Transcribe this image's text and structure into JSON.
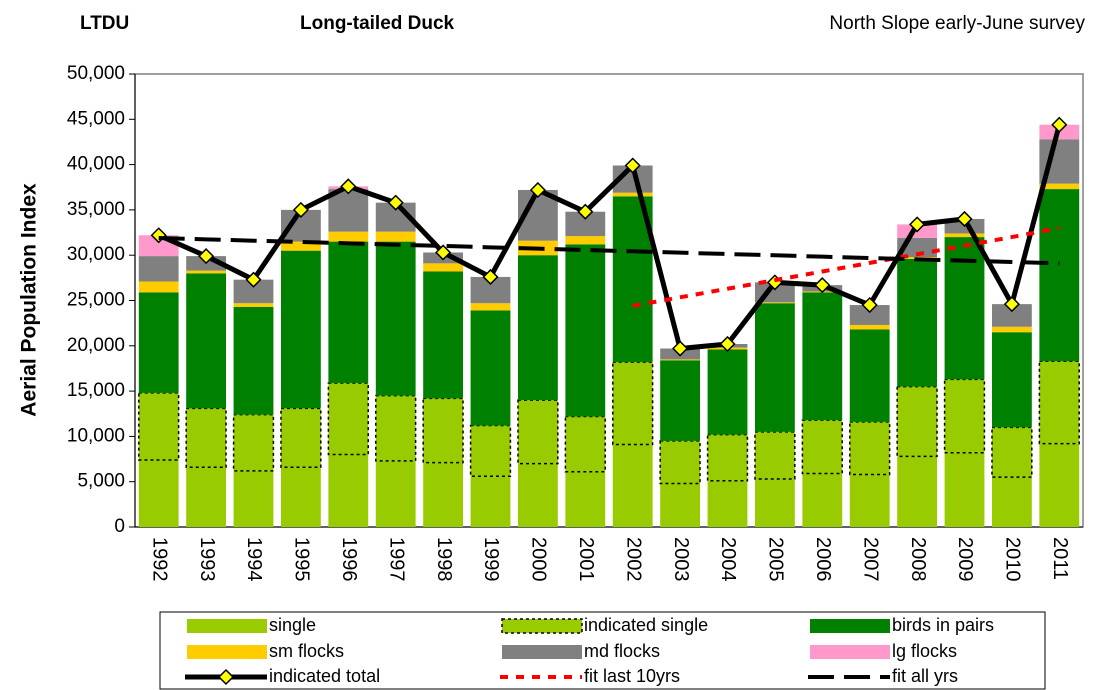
{
  "chart_data": {
    "type": "bar",
    "stacked": true,
    "title": "Long-tailed Duck",
    "code": "LTDU",
    "subtitle": "North Slope early-June survey",
    "y_label": "Aerial Population Index",
    "categories": [
      "1992",
      "1993",
      "1994",
      "1995",
      "1996",
      "1997",
      "1998",
      "1999",
      "2000",
      "2001",
      "2002",
      "2003",
      "2004",
      "2005",
      "2006",
      "2007",
      "2008",
      "2009",
      "2010",
      "2011"
    ],
    "ylim": [
      0,
      50000
    ],
    "yticks": [
      0,
      {
        "value": 5000,
        "label": "5,000"
      },
      {
        "value": 10000,
        "label": "10,000"
      },
      {
        "value": 15000,
        "label": "15,000"
      },
      {
        "value": 20000,
        "label": "20,000"
      },
      {
        "value": 25000,
        "label": "25,000"
      },
      {
        "value": 30000,
        "label": "30,000"
      },
      {
        "value": 35000,
        "label": "35,000"
      },
      {
        "value": 40000,
        "label": "40,000"
      },
      {
        "value": 45000,
        "label": "45,000"
      },
      {
        "value": 50000,
        "label": "50,000"
      }
    ],
    "grid": false,
    "legend": "bottom",
    "series": [
      {
        "name": "single",
        "color": "#99cc00",
        "values": [
          7400,
          6600,
          6200,
          6600,
          8000,
          7300,
          7100,
          5600,
          7000,
          6100,
          9100,
          4800,
          5100,
          5300,
          5900,
          5800,
          7800,
          8200,
          5500,
          9200
        ]
      },
      {
        "name": "indicated single",
        "color": "#99cc00",
        "dotted": true,
        "values": [
          7400,
          6500,
          6200,
          6500,
          7900,
          7200,
          7100,
          5600,
          7000,
          6100,
          9100,
          4700,
          5100,
          5200,
          5900,
          5800,
          7700,
          8100,
          5500,
          9100
        ]
      },
      {
        "name": "birds in pairs",
        "color": "#008000",
        "values": [
          11100,
          14900,
          11900,
          17400,
          15600,
          17000,
          14000,
          12700,
          16000,
          19000,
          18300,
          8900,
          9400,
          14200,
          14100,
          10200,
          14100,
          15700,
          10500,
          19000
        ]
      },
      {
        "name": "sm flocks",
        "color": "#ffcc00",
        "values": [
          1200,
          300,
          400,
          1000,
          1100,
          1100,
          900,
          800,
          1600,
          900,
          400,
          100,
          200,
          100,
          100,
          500,
          200,
          400,
          600,
          600
        ]
      },
      {
        "name": "md flocks",
        "color": "#808080",
        "values": [
          2800,
          1600,
          2600,
          3500,
          4700,
          3200,
          1200,
          2900,
          5600,
          2700,
          3000,
          1200,
          400,
          2200,
          700,
          2200,
          2100,
          1600,
          2500,
          4900
        ]
      },
      {
        "name": "lg flocks",
        "color": "#ff99cc",
        "values": [
          2300,
          0,
          0,
          0,
          300,
          0,
          0,
          0,
          0,
          0,
          0,
          0,
          0,
          0,
          0,
          0,
          1500,
          0,
          0,
          1600
        ]
      },
      {
        "name": "indicated total",
        "type": "line",
        "color": "#000000",
        "marker_color": "#ffff00",
        "values": [
          32200,
          29900,
          27300,
          35000,
          37600,
          35800,
          30300,
          27600,
          37200,
          34800,
          39900,
          19700,
          20200,
          27000,
          26700,
          24500,
          33400,
          34000,
          24600,
          44400
        ]
      },
      {
        "name": "fit last 10yrs",
        "type": "line",
        "color": "#ff0000",
        "dash": "short",
        "values": [
          null,
          null,
          null,
          null,
          null,
          null,
          null,
          null,
          null,
          null,
          24400,
          25350,
          26300,
          27250,
          28200,
          29150,
          30100,
          31050,
          32000,
          33000
        ]
      },
      {
        "name": "fit all yrs",
        "type": "line",
        "color": "#000000",
        "dash": "long",
        "values": [
          31900,
          31750,
          31600,
          31460,
          31310,
          31160,
          31020,
          30870,
          30720,
          30570,
          30430,
          30280,
          30130,
          29990,
          29840,
          29690,
          29540,
          29400,
          29250,
          29100
        ]
      }
    ]
  }
}
